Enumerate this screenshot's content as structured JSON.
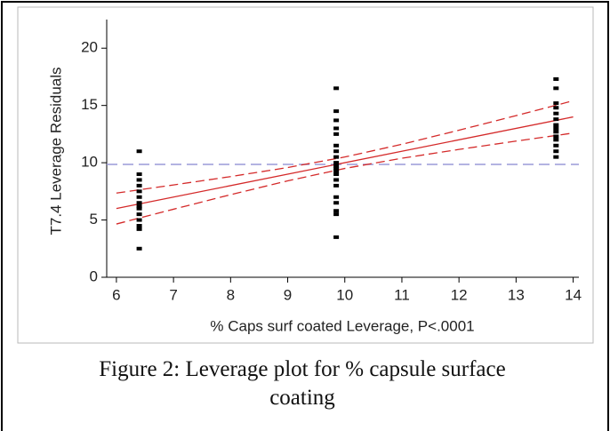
{
  "chart_data": {
    "type": "scatter",
    "xlabel": "% Caps surf coated Leverage, P<.0001",
    "ylabel": "T7.4 Leverage Residuals",
    "caption": "Figure 2: Leverage plot for % capsule surface coating",
    "xlim": [
      5.83,
      14.1
    ],
    "ylim": [
      0,
      22.5
    ],
    "xticks": [
      6,
      7,
      8,
      9,
      10,
      11,
      12,
      13,
      14
    ],
    "yticks": [
      0,
      5,
      10,
      15,
      20
    ],
    "points": {
      "color": "#000000",
      "x": [
        6.4,
        6.4,
        6.4,
        6.4,
        6.4,
        6.4,
        6.4,
        6.4,
        6.4,
        6.4,
        6.4,
        6.4,
        6.4,
        6.4,
        9.85,
        9.85,
        9.85,
        9.85,
        9.85,
        9.85,
        9.85,
        9.85,
        9.85,
        9.85,
        9.85,
        9.85,
        9.85,
        9.85,
        9.85,
        9.85,
        9.85,
        9.85,
        9.85,
        9.85,
        13.7,
        13.7,
        13.7,
        13.7,
        13.7,
        13.7,
        13.7,
        13.7,
        13.7,
        13.7,
        13.7,
        13.7,
        13.7,
        13.7
      ],
      "values": [
        11,
        9,
        8.5,
        8,
        7.5,
        7,
        6.5,
        6.2,
        6,
        5.5,
        5,
        4.5,
        4.2,
        2.5,
        16.5,
        14.5,
        13.7,
        13,
        12.5,
        11.5,
        11,
        10.5,
        10,
        9.7,
        9.5,
        9.3,
        9,
        8.5,
        8,
        7,
        6.5,
        5.8,
        5.5,
        3.5,
        17.3,
        16.5,
        15.2,
        14.8,
        14.3,
        13.8,
        13.3,
        13,
        12.7,
        12.3,
        12,
        11.5,
        11,
        10.5
      ]
    },
    "fit": {
      "color": "#d42a2a",
      "x": [
        6,
        14
      ],
      "values": [
        6,
        14
      ]
    },
    "confidence_bands": {
      "color": "#d42a2a",
      "x": [
        6,
        7,
        8,
        9,
        10,
        11,
        12,
        13,
        14
      ],
      "lower": [
        4.65,
        5.94,
        7.21,
        8.42,
        9.5,
        10.39,
        11.16,
        11.89,
        12.59
      ],
      "upper": [
        7.35,
        8.06,
        8.79,
        9.58,
        10.5,
        11.61,
        12.84,
        14.11,
        15.41
      ]
    },
    "reference_line": {
      "color": "#9a9ad8",
      "value": 9.85
    }
  }
}
